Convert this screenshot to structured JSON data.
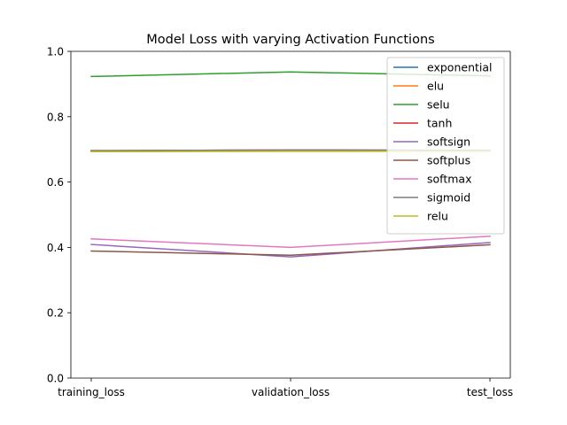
{
  "chart_data": {
    "type": "line",
    "title": "Model Loss with varying Activation Functions",
    "xlabel": "",
    "ylabel": "",
    "categories": [
      "training_loss",
      "validation_loss",
      "test_loss"
    ],
    "ylim": [
      0.0,
      1.0
    ],
    "yticks": [
      "0.0",
      "0.2",
      "0.4",
      "0.6",
      "0.8",
      "1.0"
    ],
    "grid": false,
    "legend_position": "top-right",
    "series": [
      {
        "name": "exponential",
        "color": "#1f77b4",
        "values": [
          0.695,
          0.697,
          0.696
        ]
      },
      {
        "name": "elu",
        "color": "#ff7f0e",
        "values": [
          0.696,
          0.698,
          0.697
        ]
      },
      {
        "name": "selu",
        "color": "#2ca02c",
        "values": [
          0.923,
          0.937,
          0.925
        ]
      },
      {
        "name": "tanh",
        "color": "#d62728",
        "values": [
          0.696,
          0.698,
          0.697
        ]
      },
      {
        "name": "softsign",
        "color": "#9467bd",
        "values": [
          0.409,
          0.371,
          0.415
        ]
      },
      {
        "name": "softplus",
        "color": "#8c564b",
        "values": [
          0.389,
          0.376,
          0.408
        ]
      },
      {
        "name": "softmax",
        "color": "#e377c2",
        "values": [
          0.426,
          0.4,
          0.434
        ]
      },
      {
        "name": "sigmoid",
        "color": "#7f7f7f",
        "values": [
          0.696,
          0.698,
          0.697
        ]
      },
      {
        "name": "relu",
        "color": "#bcbd22",
        "values": [
          0.693,
          0.694,
          0.694
        ]
      }
    ]
  }
}
